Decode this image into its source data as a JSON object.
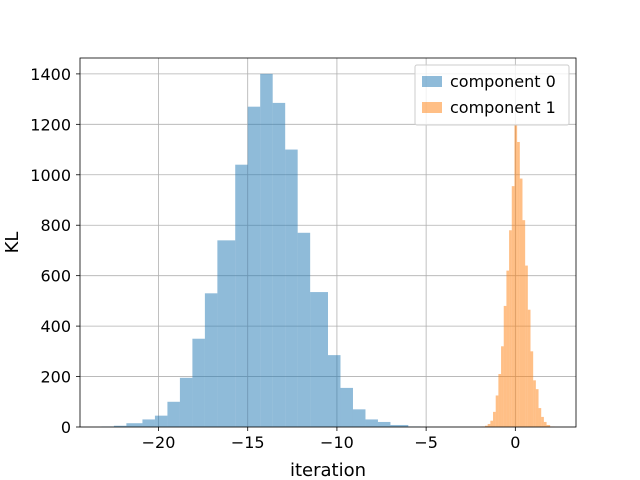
{
  "chart_data": {
    "type": "bar",
    "title": "",
    "xlabel": "iteration",
    "ylabel": "KL",
    "xlim": [
      -24.4,
      3.4
    ],
    "ylim": [
      0,
      1463
    ],
    "xticks": [
      -20,
      -15,
      -10,
      -5,
      0
    ],
    "xtick_labels": [
      "−20",
      "−15",
      "−10",
      "−5",
      "0"
    ],
    "yticks": [
      0,
      200,
      400,
      600,
      800,
      1000,
      1200,
      1400
    ],
    "ytick_labels": [
      "0",
      "200",
      "400",
      "600",
      "800",
      "1000",
      "1200",
      "1400"
    ],
    "grid": true,
    "legend_position": "top-right",
    "series": [
      {
        "name": "component 0",
        "color": "#1f77b4",
        "opacity": 0.5,
        "bins": [
          {
            "x0": -23.2,
            "x1": -22.5,
            "count": 2
          },
          {
            "x0": -22.5,
            "x1": -21.8,
            "count": 5
          },
          {
            "x0": -21.8,
            "x1": -20.9,
            "count": 15
          },
          {
            "x0": -20.9,
            "x1": -20.2,
            "count": 30
          },
          {
            "x0": -20.2,
            "x1": -19.5,
            "count": 45
          },
          {
            "x0": -19.5,
            "x1": -18.8,
            "count": 100
          },
          {
            "x0": -18.8,
            "x1": -18.1,
            "count": 195
          },
          {
            "x0": -18.1,
            "x1": -17.4,
            "count": 350
          },
          {
            "x0": -17.4,
            "x1": -16.7,
            "count": 530
          },
          {
            "x0": -16.7,
            "x1": -15.7,
            "count": 740
          },
          {
            "x0": -15.7,
            "x1": -15.0,
            "count": 1040
          },
          {
            "x0": -15.0,
            "x1": -14.3,
            "count": 1270
          },
          {
            "x0": -14.3,
            "x1": -13.6,
            "count": 1400
          },
          {
            "x0": -13.6,
            "x1": -12.9,
            "count": 1285
          },
          {
            "x0": -12.9,
            "x1": -12.2,
            "count": 1100
          },
          {
            "x0": -12.2,
            "x1": -11.5,
            "count": 770
          },
          {
            "x0": -11.5,
            "x1": -10.5,
            "count": 535
          },
          {
            "x0": -10.5,
            "x1": -9.8,
            "count": 285
          },
          {
            "x0": -9.8,
            "x1": -9.1,
            "count": 155
          },
          {
            "x0": -9.1,
            "x1": -8.4,
            "count": 70
          },
          {
            "x0": -8.4,
            "x1": -7.7,
            "count": 30
          },
          {
            "x0": -7.7,
            "x1": -7.0,
            "count": 20
          },
          {
            "x0": -7.0,
            "x1": -6.0,
            "count": 8
          },
          {
            "x0": -6.0,
            "x1": -5.3,
            "count": 2
          }
        ]
      },
      {
        "name": "component 1",
        "color": "#ff7f0e",
        "opacity": 0.5,
        "bins": [
          {
            "x0": -1.9,
            "x1": -1.7,
            "count": 2
          },
          {
            "x0": -1.7,
            "x1": -1.55,
            "count": 5
          },
          {
            "x0": -1.55,
            "x1": -1.4,
            "count": 12
          },
          {
            "x0": -1.4,
            "x1": -1.25,
            "count": 25
          },
          {
            "x0": -1.25,
            "x1": -1.1,
            "count": 60
          },
          {
            "x0": -1.1,
            "x1": -0.95,
            "count": 125
          },
          {
            "x0": -0.95,
            "x1": -0.8,
            "count": 210
          },
          {
            "x0": -0.8,
            "x1": -0.65,
            "count": 320
          },
          {
            "x0": -0.65,
            "x1": -0.5,
            "count": 480
          },
          {
            "x0": -0.5,
            "x1": -0.35,
            "count": 620
          },
          {
            "x0": -0.35,
            "x1": -0.2,
            "count": 780
          },
          {
            "x0": -0.2,
            "x1": -0.05,
            "count": 955
          },
          {
            "x0": -0.05,
            "x1": 0.1,
            "count": 1200
          },
          {
            "x0": 0.1,
            "x1": 0.25,
            "count": 1130
          },
          {
            "x0": 0.25,
            "x1": 0.4,
            "count": 985
          },
          {
            "x0": 0.4,
            "x1": 0.55,
            "count": 820
          },
          {
            "x0": 0.55,
            "x1": 0.7,
            "count": 640
          },
          {
            "x0": 0.7,
            "x1": 0.85,
            "count": 465
          },
          {
            "x0": 0.85,
            "x1": 1.0,
            "count": 300
          },
          {
            "x0": 1.0,
            "x1": 1.15,
            "count": 185
          },
          {
            "x0": 1.15,
            "x1": 1.3,
            "count": 150
          },
          {
            "x0": 1.3,
            "x1": 1.45,
            "count": 75
          },
          {
            "x0": 1.45,
            "x1": 1.6,
            "count": 40
          },
          {
            "x0": 1.6,
            "x1": 1.75,
            "count": 20
          },
          {
            "x0": 1.75,
            "x1": 1.95,
            "count": 8
          },
          {
            "x0": 1.95,
            "x1": 2.2,
            "count": 2
          }
        ]
      }
    ]
  }
}
